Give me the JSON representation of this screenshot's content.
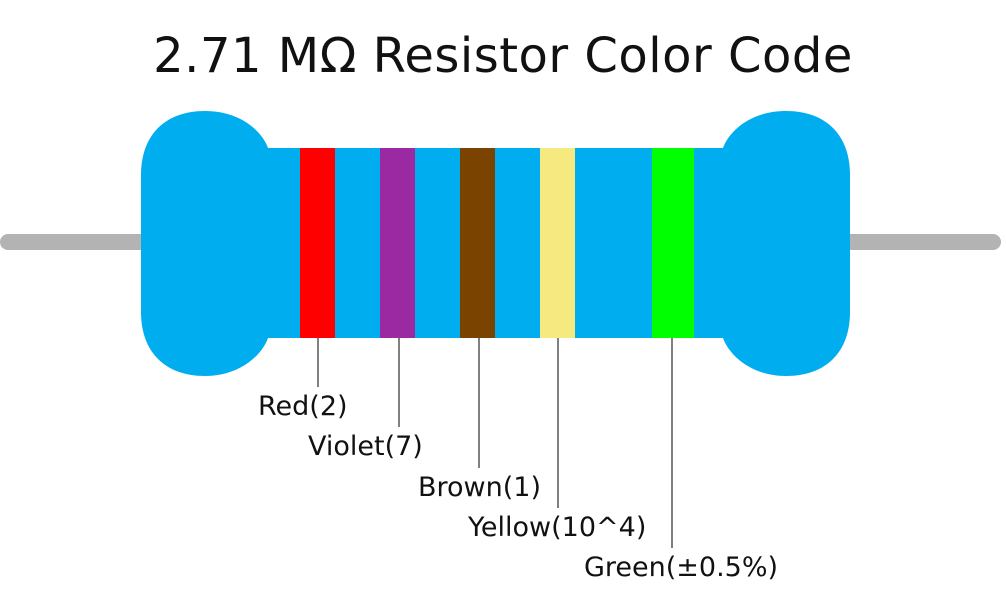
{
  "title": "2.71 MΩ Resistor Color Code",
  "colors": {
    "body": "#00adef",
    "lead": "#b3b3b3",
    "leader_line": "#000000"
  },
  "bands": [
    {
      "name": "Red",
      "label": "Red(2)",
      "color": "#ff0000"
    },
    {
      "name": "Violet",
      "label": "Violet(7)",
      "color": "#9b2aa2"
    },
    {
      "name": "Brown",
      "label": "Brown(1)",
      "color": "#7b4300"
    },
    {
      "name": "Yellow",
      "label": "Yellow(10^4)",
      "color": "#f5e97f"
    },
    {
      "name": "Green",
      "label": "Green(±0.5%)",
      "color": "#00ff00"
    }
  ]
}
